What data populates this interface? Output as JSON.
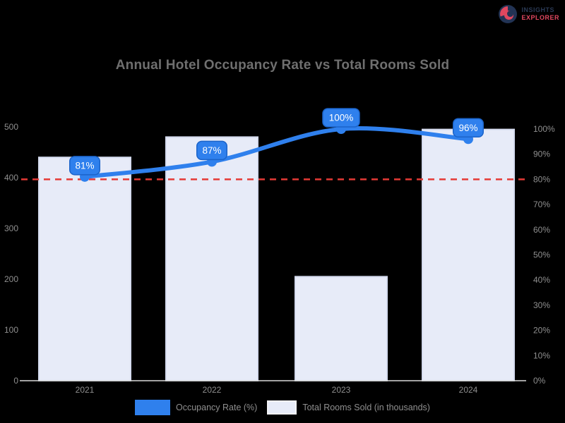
{
  "title": "Annual Hotel Occupancy Rate vs Total Rooms Sold",
  "logo": {
    "line1": "INSIGHTS",
    "line2": "EXPLORER"
  },
  "legend": {
    "line_label": "Occupancy Rate (%)",
    "bar_label": "Total Rooms Sold (in thousands)"
  },
  "colors": {
    "background": "#000000",
    "title_text": "#6f6f6f",
    "axis_text": "#8f8f8f",
    "line": "#2f80ed",
    "line_badge_border": "#1b63c9",
    "badge_text": "#ffffff",
    "bar_fill": "#e7ebf8",
    "bar_border": "#d5dbef",
    "target_line": "#e53935",
    "axis_line": "#d9d9d9",
    "logo_primary": "#2b3a55",
    "logo_accent": "#e0475f"
  },
  "chart_data": {
    "type": "bar",
    "subtype": "combo-bar-line",
    "title": "Annual Hotel Occupancy Rate vs Total Rooms Sold",
    "categories": [
      "2021",
      "2022",
      "2023",
      "2024"
    ],
    "series": [
      {
        "name": "Occupancy Rate (%)",
        "type": "line",
        "axis": "right",
        "values": [
          81,
          87,
          100,
          96
        ],
        "point_labels": [
          "81%",
          "87%",
          "100%",
          "96%"
        ],
        "color": "#2f80ed"
      },
      {
        "name": "Total Rooms Sold (in thousands)",
        "type": "bar",
        "axis": "left",
        "values": [
          440,
          480,
          205,
          495
        ],
        "color": "#e7ebf8",
        "border": "#d5dbef"
      }
    ],
    "target_line": {
      "axis": "right",
      "value": 80,
      "style": "dashed",
      "color": "#e53935"
    },
    "left_axis": {
      "min": 0,
      "max": 500,
      "ticks": [
        "500",
        "400",
        "300",
        "200",
        "100",
        "0"
      ]
    },
    "right_axis": {
      "min": 0,
      "max": 100,
      "ticks": [
        "100%",
        "90%",
        "80%",
        "70%",
        "60%",
        "50%",
        "40%",
        "30%",
        "20%",
        "10%",
        "0%"
      ]
    },
    "grid": false,
    "legend_position": "bottom"
  }
}
